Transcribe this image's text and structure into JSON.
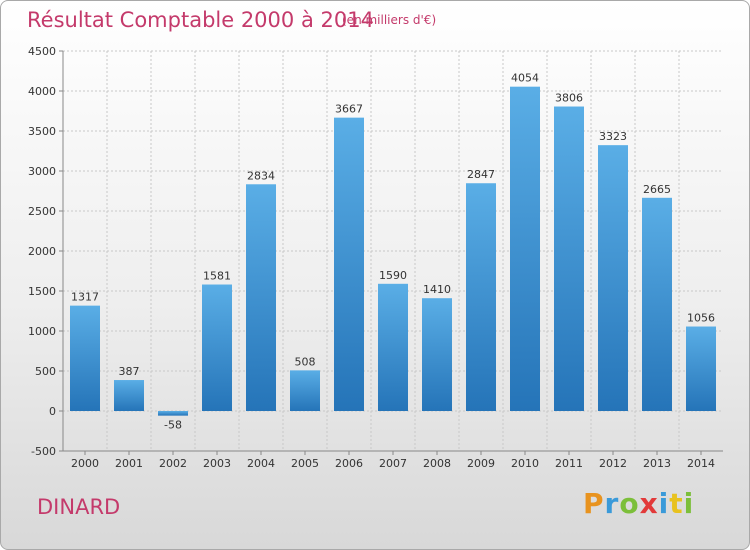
{
  "header": {
    "title": "Résultat Comptable 2000 à 2014",
    "subtitle": "(en milliers d'€)"
  },
  "footer": {
    "city": "DINARD",
    "brand_letters": [
      "P",
      "r",
      "o",
      "x",
      "i",
      "t",
      "i"
    ],
    "brand_colors": [
      "#e8931f",
      "#3a9ad9",
      "#7cbf3a",
      "#e23a3a",
      "#3a9ad9",
      "#e8c21f",
      "#7cbf3a"
    ]
  },
  "chart_data": {
    "type": "bar",
    "categories": [
      "2000",
      "2001",
      "2002",
      "2003",
      "2004",
      "2005",
      "2006",
      "2007",
      "2008",
      "2009",
      "2010",
      "2011",
      "2012",
      "2013",
      "2014"
    ],
    "values": [
      1317,
      387,
      -58,
      1581,
      2834,
      508,
      3667,
      1590,
      1410,
      2847,
      4054,
      3806,
      3323,
      2665,
      1056
    ],
    "value_labels": [
      "1317",
      "387",
      "-58",
      "1581",
      "2834",
      "508",
      "3667",
      "1590",
      "1410",
      "2847",
      "4054",
      "3806",
      "3323",
      "2665",
      "1056"
    ],
    "ylim": [
      -500,
      4500
    ],
    "yticks": [
      -500,
      0,
      500,
      1000,
      1500,
      2000,
      2500,
      3000,
      3500,
      4000,
      4500
    ],
    "ytick_labels": [
      "-500",
      "0",
      "500",
      "1000",
      "1500",
      "2000",
      "2500",
      "3000",
      "3500",
      "4000",
      "4500"
    ],
    "grid": true,
    "bar_color_light": "#5aaee6",
    "bar_color_dark": "#2574b8"
  }
}
